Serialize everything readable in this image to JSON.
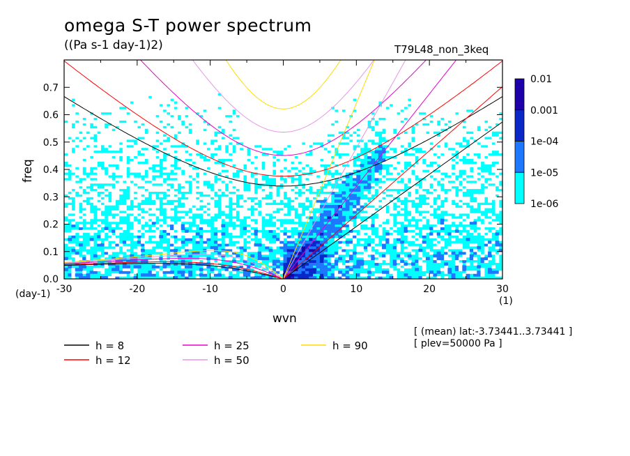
{
  "header": {
    "title": "omega S-T power spectrum",
    "units": "((Pa s-1 day-1)2)",
    "run_name": "T79L48_non_3keq"
  },
  "axes": {
    "xlabel": "wvn",
    "ylabel": "freq",
    "x_unit_left": "(day-1)",
    "x_unit_right": "(1)"
  },
  "notes": {
    "line1": "[ (mean) lat:-3.73441..3.73441 ]",
    "line2": "[ plev=50000 Pa ]"
  },
  "chart_data": {
    "type": "heatmap",
    "title": "omega S-T power spectrum",
    "subtitle": "((Pa s-1 day-1)2)",
    "xlabel": "wvn",
    "ylabel": "freq",
    "xlim": [
      -30,
      30
    ],
    "ylim": [
      0,
      0.8
    ],
    "x_ticks": [
      -30,
      -20,
      -10,
      0,
      10,
      20,
      30
    ],
    "x_tick_labels": [
      "-30",
      "-20",
      "-10",
      "0",
      "10",
      "20",
      "30"
    ],
    "y_ticks": [
      0,
      0.1,
      0.2,
      0.3,
      0.4,
      0.5,
      0.6,
      0.7
    ],
    "y_tick_labels": [
      "0.0",
      "0.1",
      "0.2",
      "0.3",
      "0.4",
      "0.5",
      "0.6",
      "0.7"
    ],
    "colorbar": {
      "levels": [
        "1e-06",
        "1e-05",
        "1e-04",
        "0.001",
        "0.01"
      ],
      "colors": [
        "#00ffff",
        "#1e78ff",
        "#0a28c8",
        "#1e00aa"
      ],
      "scale": "log"
    },
    "below_min_color": "#ffffff",
    "dispersion_curves": [
      {
        "h": 8,
        "label": "h =  8",
        "color": "#000000"
      },
      {
        "h": 12,
        "label": "h = 12",
        "color": "#ff0000"
      },
      {
        "h": 25,
        "label": "h = 25",
        "color": "#e600c8"
      },
      {
        "h": 50,
        "label": "h = 50",
        "color": "#e696e6"
      },
      {
        "h": 90,
        "label": "h = 90",
        "color": "#ffdc00"
      }
    ],
    "legend_position": "bottom-left"
  }
}
